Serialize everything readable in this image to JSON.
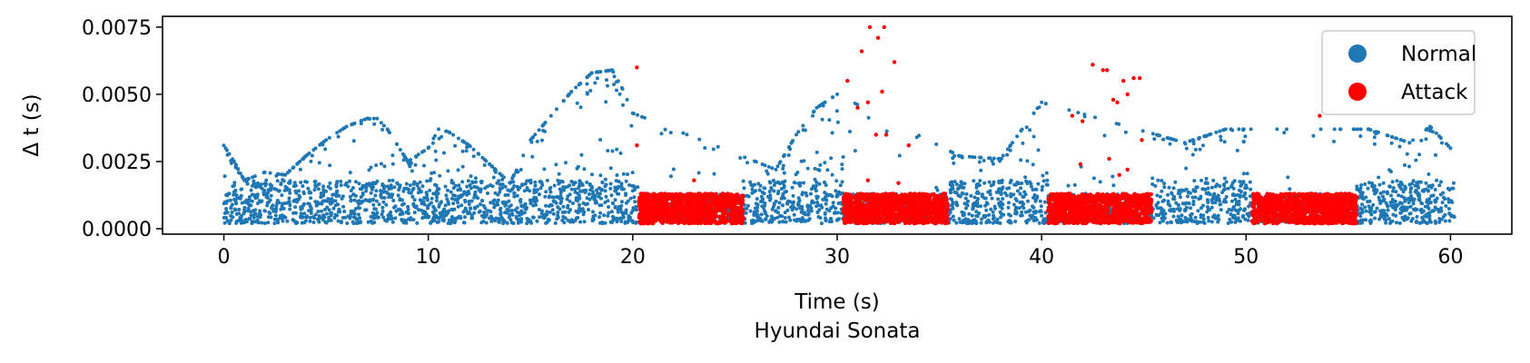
{
  "chart_data": {
    "type": "scatter",
    "xlabel": "Time (s)",
    "ylabel": "Δ t (s)",
    "subtitle": "Hyundai Sonata",
    "xlim": [
      -3,
      63
    ],
    "ylim": [
      -0.0002,
      0.0079
    ],
    "x_ticks": [
      "0",
      "10",
      "20",
      "30",
      "40",
      "50",
      "60"
    ],
    "y_ticks": [
      "0.0000",
      "0.0025",
      "0.0050",
      "0.0075"
    ],
    "x_tick_values": [
      0,
      10,
      20,
      30,
      40,
      50,
      60
    ],
    "y_tick_values": [
      0,
      0.0025,
      0.005,
      0.0075
    ],
    "legend_position": "top-right",
    "grid": false,
    "series": [
      {
        "name": "Normal",
        "color": "#1f77b4",
        "description_points": [
          [
            0,
            0.0031
          ],
          [
            0.5,
            0.0025
          ],
          [
            1,
            0.0018
          ],
          [
            2,
            0.0021
          ],
          [
            3,
            0.002
          ],
          [
            4,
            0.0027
          ],
          [
            5,
            0.0033
          ],
          [
            6,
            0.0038
          ],
          [
            7,
            0.0041
          ],
          [
            7.5,
            0.0041
          ],
          [
            8,
            0.0037
          ],
          [
            9,
            0.0025
          ],
          [
            10,
            0.003
          ],
          [
            10.5,
            0.0037
          ],
          [
            11,
            0.0036
          ],
          [
            12,
            0.0031
          ],
          [
            13,
            0.0024
          ],
          [
            14,
            0.0017
          ],
          [
            15,
            0.0033
          ],
          [
            16,
            0.0042
          ],
          [
            17,
            0.0051
          ],
          [
            18,
            0.0058
          ],
          [
            19,
            0.0059
          ],
          [
            19.5,
            0.0052
          ],
          [
            20,
            0.0043
          ],
          [
            27,
            0.0022
          ],
          [
            28,
            0.0035
          ],
          [
            29,
            0.0045
          ],
          [
            30,
            0.005
          ],
          [
            36,
            0.0027
          ],
          [
            38,
            0.0026
          ],
          [
            40,
            0.0047
          ],
          [
            47,
            0.0032
          ],
          [
            49,
            0.0037
          ],
          [
            56,
            0.0037
          ],
          [
            58,
            0.0032
          ],
          [
            59,
            0.0038
          ],
          [
            60,
            0.003
          ]
        ]
      },
      {
        "name": "Attack",
        "color": "#ff0000",
        "attack_windows": [
          [
            20.3,
            25.4
          ],
          [
            30.3,
            35.4
          ],
          [
            40.3,
            45.4
          ],
          [
            50.3,
            55.4
          ]
        ],
        "band_range": [
          0.0002,
          0.0013
        ],
        "outliers": [
          [
            20.2,
            0.006
          ],
          [
            20.2,
            0.0031
          ],
          [
            31.2,
            0.0066
          ],
          [
            31.6,
            0.0075
          ],
          [
            32.0,
            0.0071
          ],
          [
            32.3,
            0.0075
          ],
          [
            31.5,
            0.0047
          ],
          [
            32.2,
            0.0051
          ],
          [
            31.9,
            0.0035
          ],
          [
            32.4,
            0.0035
          ],
          [
            33.5,
            0.0031
          ],
          [
            30.5,
            0.0055
          ],
          [
            32.8,
            0.0062
          ],
          [
            31.0,
            0.0045
          ],
          [
            42.5,
            0.0061
          ],
          [
            43.0,
            0.0059
          ],
          [
            43.2,
            0.0059
          ],
          [
            44.0,
            0.0055
          ],
          [
            44.5,
            0.0056
          ],
          [
            44.8,
            0.0056
          ],
          [
            43.5,
            0.0048
          ],
          [
            43.7,
            0.0047
          ],
          [
            44.2,
            0.005
          ],
          [
            41.5,
            0.0042
          ],
          [
            42.0,
            0.004
          ],
          [
            44.9,
            0.0033
          ],
          [
            43.3,
            0.0026
          ],
          [
            41.9,
            0.0024
          ],
          [
            43.8,
            0.002
          ],
          [
            44.2,
            0.0022
          ],
          [
            53.6,
            0.0042
          ],
          [
            23.0,
            0.0018
          ],
          [
            31.5,
            0.0018
          ],
          [
            33.0,
            0.0017
          ]
        ]
      }
    ]
  }
}
